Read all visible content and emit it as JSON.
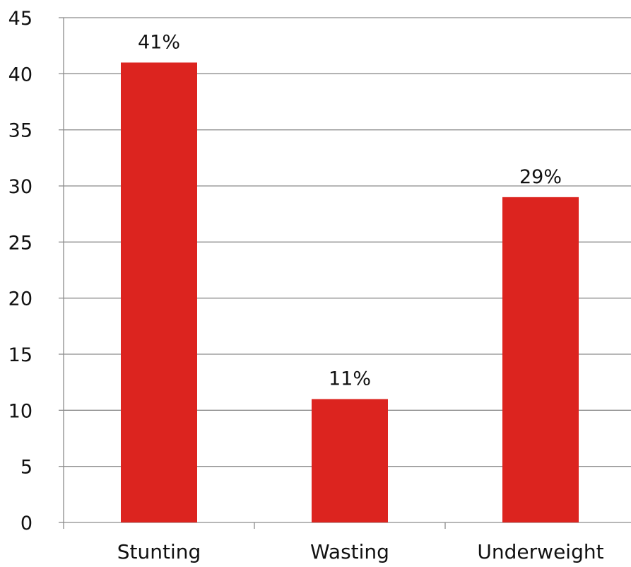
{
  "chart_data": {
    "type": "bar",
    "title": "",
    "xlabel": "",
    "ylabel": "",
    "categories": [
      "Stunting",
      "Wasting",
      "Underweight"
    ],
    "values": [
      41,
      11,
      29
    ],
    "data_labels": [
      "41%",
      "11%",
      "29%"
    ],
    "yticks": [
      "0",
      "5",
      "10",
      "15",
      "20",
      "25",
      "30",
      "35",
      "40",
      "45"
    ],
    "ylim": [
      0,
      45
    ],
    "grid": true,
    "legend": "none",
    "bar_color": "#dc241f"
  }
}
